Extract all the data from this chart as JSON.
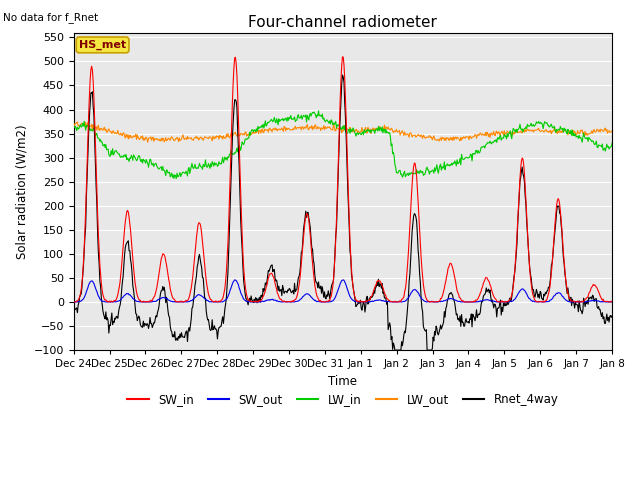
{
  "title": "Four-channel radiometer",
  "top_left_text": "No data for f_Rnet",
  "ylabel": "Solar radiation (W/m2)",
  "xlabel": "Time",
  "ylim": [
    -100,
    560
  ],
  "yticks": [
    -100,
    -50,
    0,
    50,
    100,
    150,
    200,
    250,
    300,
    350,
    400,
    450,
    500,
    550
  ],
  "xtick_labels": [
    "Dec 24",
    "Dec 25",
    "Dec 26",
    "Dec 27",
    "Dec 28",
    "Dec 29",
    "Dec 30",
    "Dec 31",
    "Jan 1",
    "Jan 2",
    "Jan 3",
    "Jan 4",
    "Jan 5",
    "Jan 6",
    "Jan 7",
    "Jan 8"
  ],
  "annotation_box": "HS_met",
  "annotation_box_facecolor": "#f5e642",
  "annotation_box_edgecolor": "#c8a000",
  "annotation_text_color": "#800000",
  "background_color": "#e8e8e8",
  "legend_entries": [
    "SW_in",
    "SW_out",
    "LW_in",
    "LW_out",
    "Rnet_4way"
  ],
  "legend_colors": [
    "#ff0000",
    "#0000ee",
    "#00cc00",
    "#ff8800",
    "#000000"
  ],
  "line_width": 0.8,
  "n_days": 15,
  "figsize": [
    6.4,
    4.8
  ],
  "dpi": 100
}
